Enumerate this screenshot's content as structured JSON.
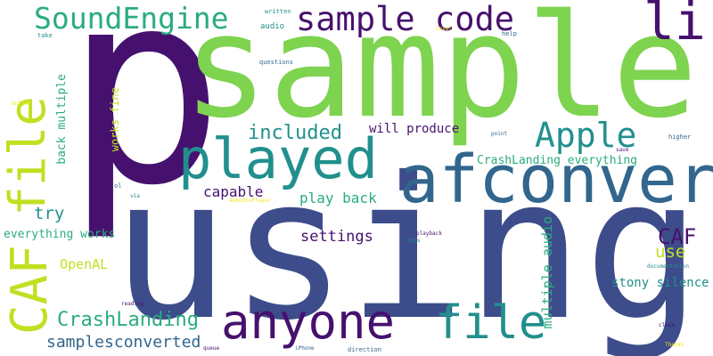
{
  "palette": {
    "purple": "#46116e",
    "indigo": "#3d4c8a",
    "blue": "#32668d",
    "teal": "#21908d",
    "green": "#2aac7f",
    "lightgreen": "#5ec962",
    "lime": "#7ed34f",
    "yellow": "#c2df23",
    "brightyellow": "#f2e51d"
  },
  "words": [
    {
      "id": "p",
      "text": "p"
    },
    {
      "id": "sample",
      "text": "sample"
    },
    {
      "id": "using",
      "text": "using"
    },
    {
      "id": "afconvert",
      "text": "afconvert"
    },
    {
      "id": "played",
      "text": "played"
    },
    {
      "id": "anyone",
      "text": "anyone"
    },
    {
      "id": "file-bottom",
      "text": "file"
    },
    {
      "id": "file-left",
      "text": "file"
    },
    {
      "id": "caf-left",
      "text": "CAF"
    },
    {
      "id": "soundengine",
      "text": "SoundEngine"
    },
    {
      "id": "sample-code",
      "text": "sample code"
    },
    {
      "id": "li",
      "text": "li"
    },
    {
      "id": "apple",
      "text": "Apple"
    },
    {
      "id": "included",
      "text": "included"
    },
    {
      "id": "caf-right",
      "text": "CAF"
    },
    {
      "id": "use",
      "text": "use"
    },
    {
      "id": "crashlanding",
      "text": "CrashLanding"
    },
    {
      "id": "samplesconverted",
      "text": "samplesconverted"
    },
    {
      "id": "settings",
      "text": "settings"
    },
    {
      "id": "try",
      "text": "try"
    },
    {
      "id": "capable",
      "text": "capable"
    },
    {
      "id": "play-back",
      "text": "play back"
    },
    {
      "id": "will-produce",
      "text": "will produce"
    },
    {
      "id": "crashlanding-everything",
      "text": "CrashLanding everything"
    },
    {
      "id": "everything-works",
      "text": "everything works"
    },
    {
      "id": "openal",
      "text": "OpenAL"
    },
    {
      "id": "stony-silence",
      "text": "stony silence"
    },
    {
      "id": "multiple-audio",
      "text": "multiple audio"
    },
    {
      "id": "back-multiple",
      "text": "back multiple"
    },
    {
      "id": "works-fine",
      "text": "works fine"
    },
    {
      "id": "written",
      "text": "written"
    },
    {
      "id": "audio",
      "text": "audio"
    },
    {
      "id": "questions",
      "text": "questions"
    },
    {
      "id": "take",
      "text": "take"
    },
    {
      "id": "level",
      "text": "level"
    },
    {
      "id": "help",
      "text": "help"
    },
    {
      "id": "buffer",
      "text": "buffer"
    },
    {
      "id": "point",
      "text": "point"
    },
    {
      "id": "higher",
      "text": "higher"
    },
    {
      "id": "save",
      "text": "save"
    },
    {
      "id": "ol",
      "text": "ol"
    },
    {
      "id": "via",
      "text": "via"
    },
    {
      "id": "avaudioplayer",
      "text": "AVAudioPlayer"
    },
    {
      "id": "playback",
      "text": "playback"
    },
    {
      "id": "docs",
      "text": "docs"
    },
    {
      "id": "documentation",
      "text": "documentation"
    },
    {
      "id": "reading",
      "text": "reading"
    },
    {
      "id": "queue",
      "text": "queue"
    },
    {
      "id": "iphone",
      "text": "iPhone"
    },
    {
      "id": "direction",
      "text": "direction"
    },
    {
      "id": "class",
      "text": "class"
    },
    {
      "id": "thanks",
      "text": "Thanks"
    }
  ]
}
